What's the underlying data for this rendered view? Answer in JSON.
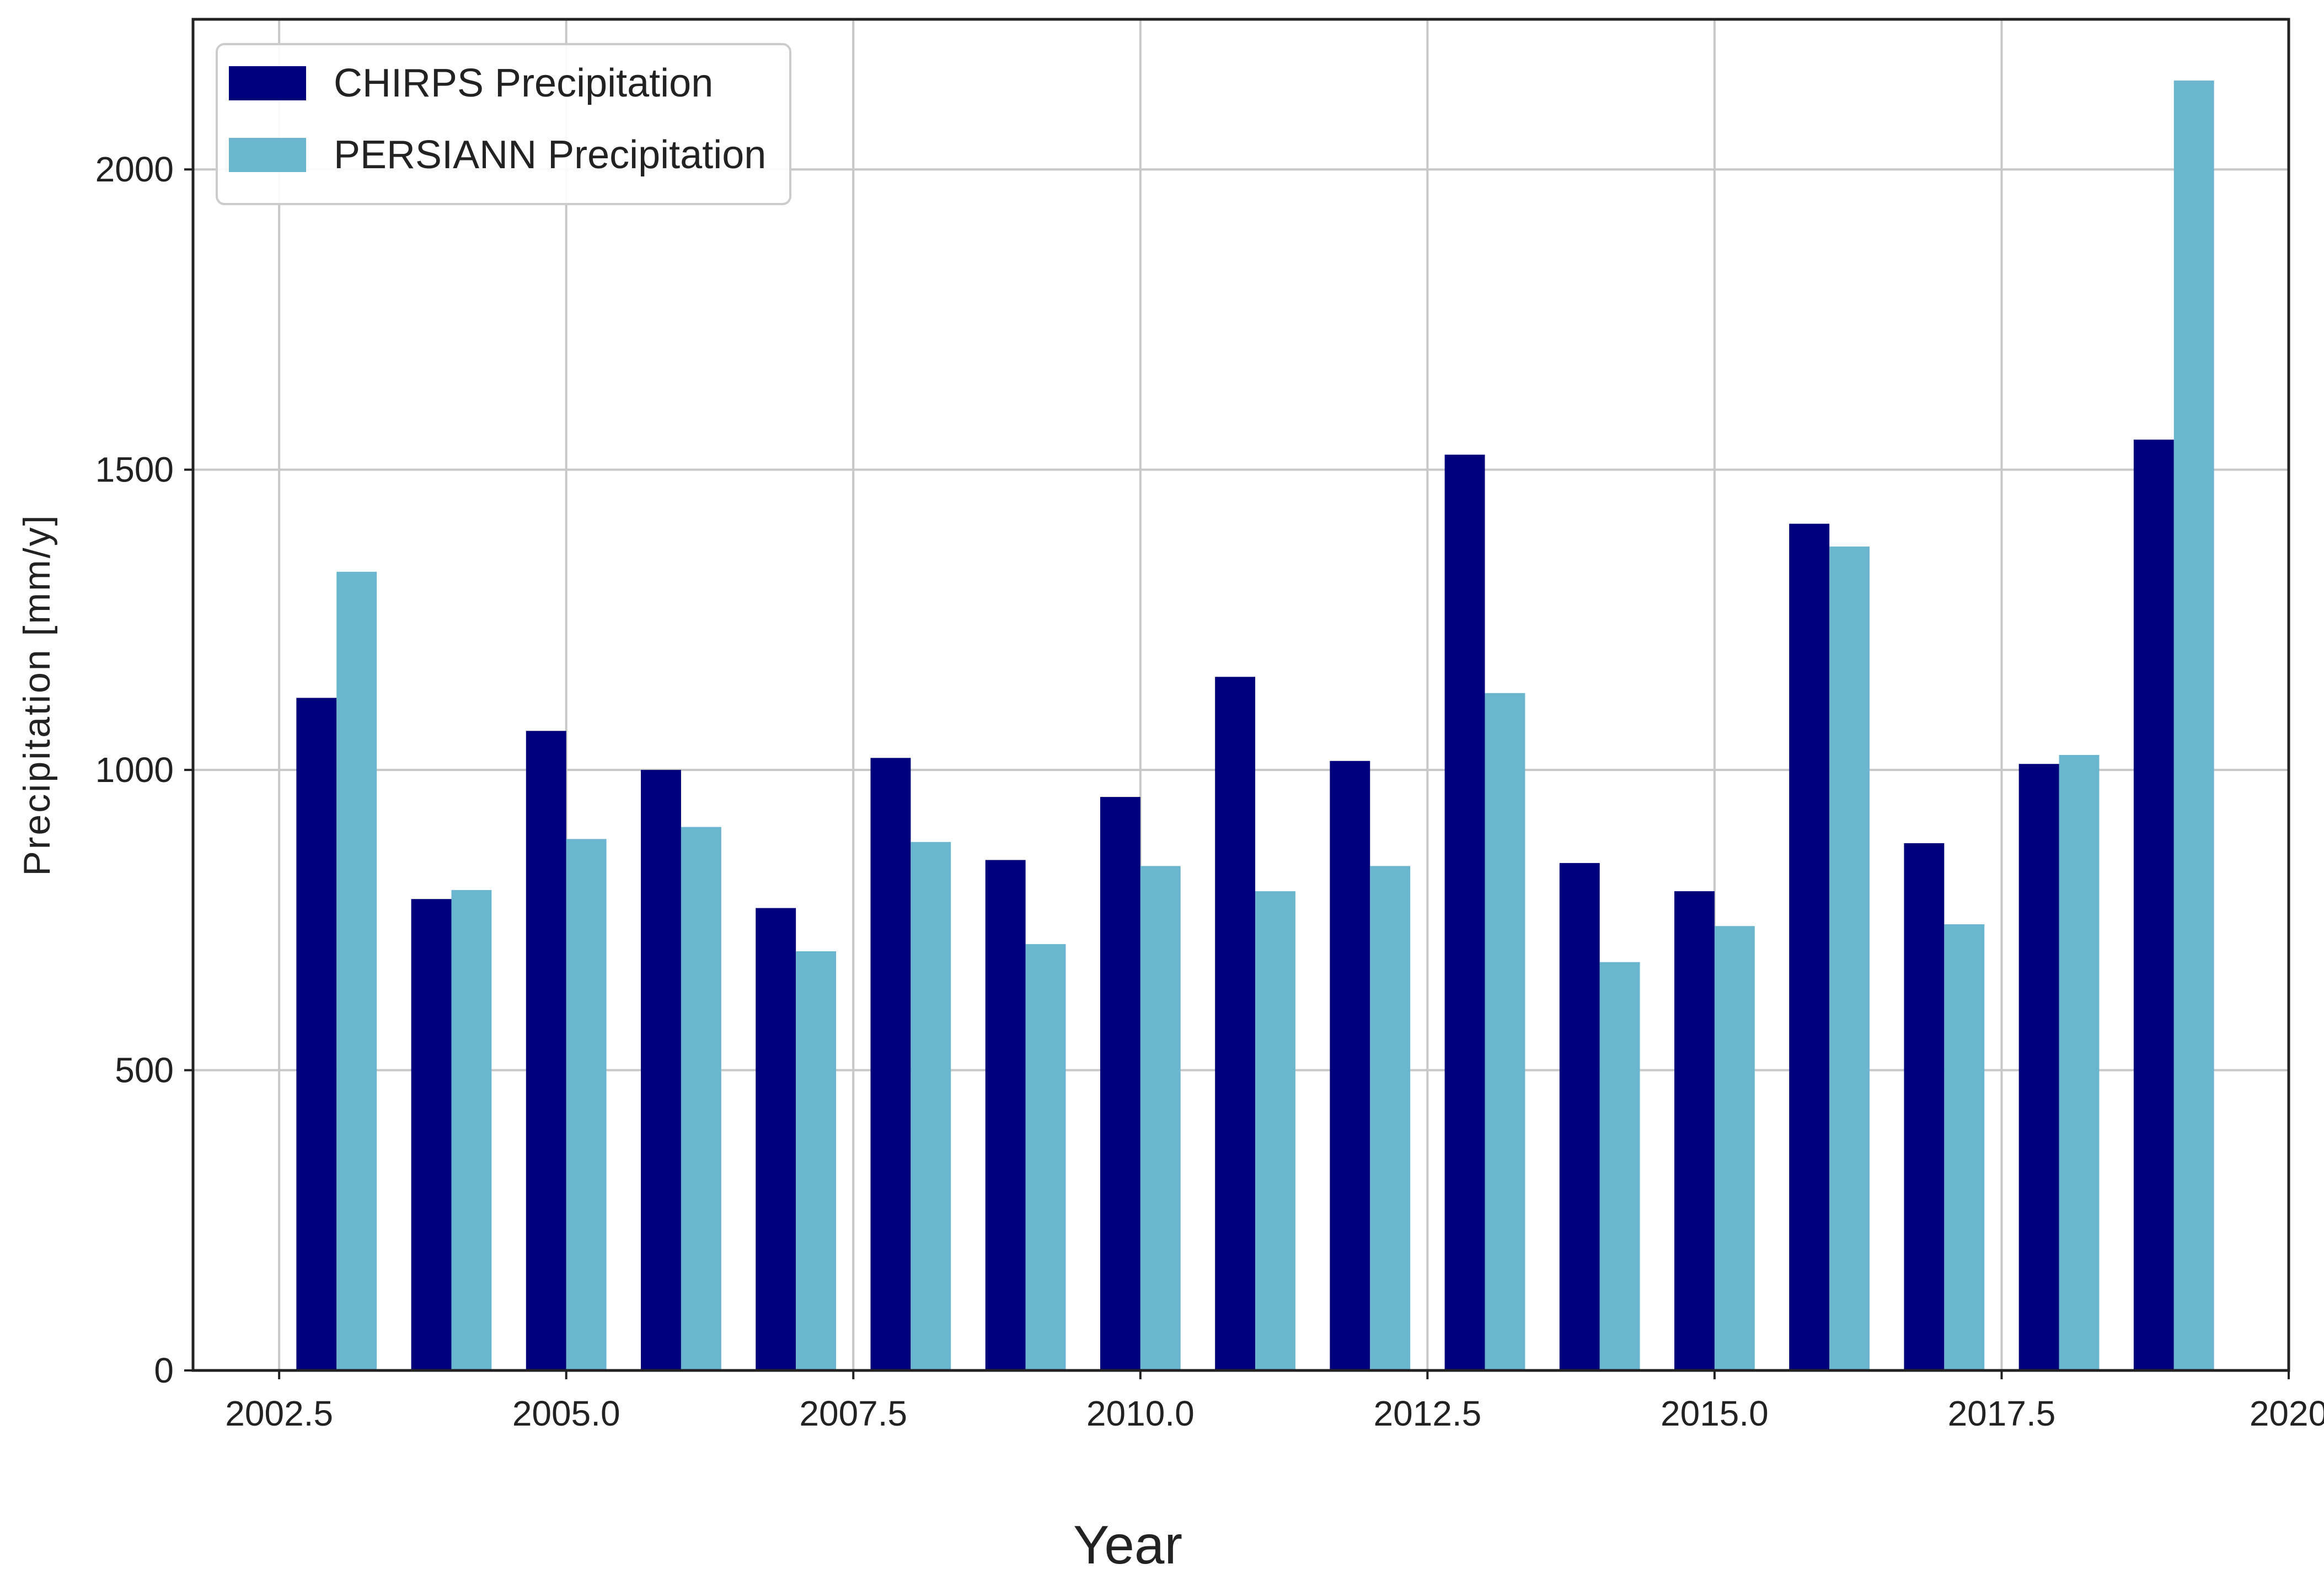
{
  "chart_data": {
    "type": "bar",
    "title": "",
    "xlabel": "Year",
    "ylabel": "Precipitation [mm/y]",
    "xlim": [
      2001.75,
      2020.0
    ],
    "ylim": [
      0,
      2250
    ],
    "x_ticks": [
      2002.5,
      2005.0,
      2007.5,
      2010.0,
      2012.5,
      2015.0,
      2017.5,
      2020
    ],
    "x_tick_labels": [
      "2002.5",
      "2005.0",
      "2007.5",
      "2010.0",
      "2012.5",
      "2015.0",
      "2017.5",
      "2020"
    ],
    "y_ticks": [
      0,
      500,
      1000,
      1500,
      2000
    ],
    "y_tick_labels": [
      "0",
      "500",
      "1000",
      "1500",
      "2000"
    ],
    "grid": true,
    "legend_position": "top-left",
    "categories": [
      2003,
      2004,
      2005,
      2006,
      2007,
      2008,
      2009,
      2010,
      2011,
      2012,
      2013,
      2014,
      2015,
      2016,
      2017,
      2018,
      2019
    ],
    "series": [
      {
        "name": "CHIRPS Precipitation",
        "color": "#00007a",
        "values": [
          1120,
          785,
          1065,
          1000,
          770,
          1020,
          850,
          955,
          1155,
          1015,
          1525,
          845,
          798,
          1410,
          878,
          1010,
          1550
        ]
      },
      {
        "name": "PERSIANN Precipitation",
        "color": "#6bb6cf",
        "values": [
          1330,
          800,
          885,
          905,
          698,
          880,
          710,
          840,
          798,
          840,
          1128,
          680,
          740,
          1372,
          743,
          1025,
          2148
        ]
      }
    ]
  }
}
